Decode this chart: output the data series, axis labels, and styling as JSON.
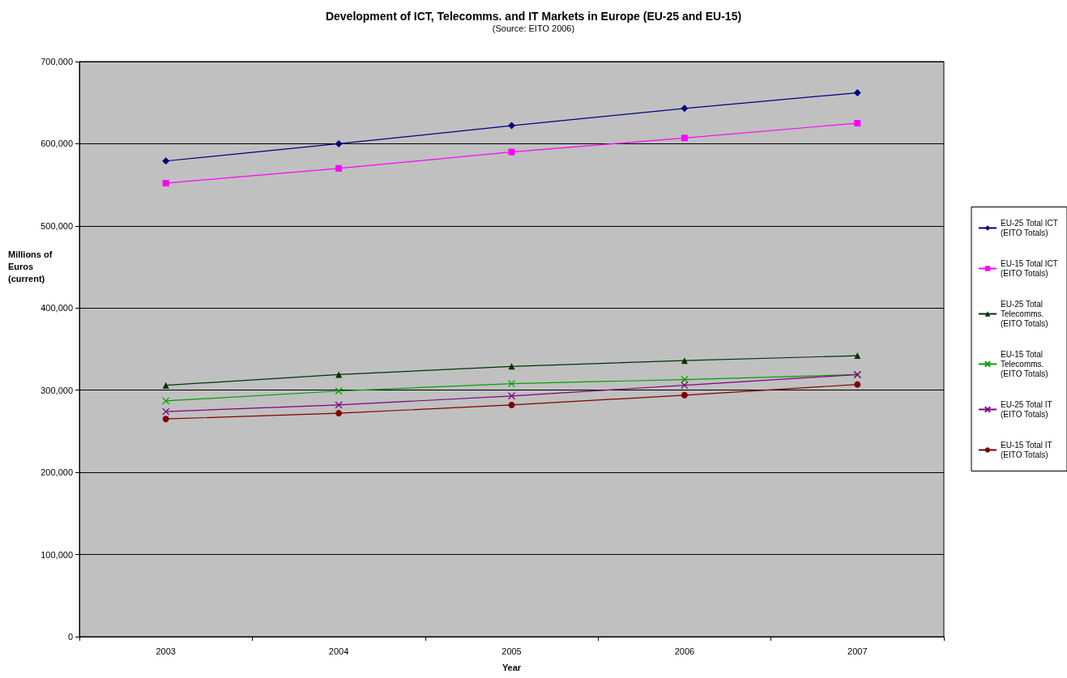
{
  "chart_data": {
    "type": "line",
    "title": "Development of ICT, Telecomms. and IT Markets in Europe (EU-25 and EU-15)",
    "subtitle": "(Source: EITO 2006)",
    "xlabel": "Year",
    "ylabel": "Millions of Euros (current)",
    "categories": [
      "2003",
      "2004",
      "2005",
      "2006",
      "2007"
    ],
    "ylim": [
      0,
      700000
    ],
    "yticks": [
      0,
      {
        "value": 100000,
        "label": "100,000"
      },
      {
        "value": 200000,
        "label": "200,000"
      },
      {
        "value": 300000,
        "label": "300,000"
      },
      {
        "value": 400000,
        "label": "400,000"
      },
      {
        "value": 500000,
        "label": "500,000"
      },
      {
        "value": 600000,
        "label": "600,000"
      },
      {
        "value": 700000,
        "label": "700,000"
      }
    ],
    "grid": "y",
    "legend": "right",
    "series": [
      {
        "name": "EU-25 Total ICT (EITO Totals)",
        "color": "#000080",
        "marker": "diamond",
        "values": [
          579000,
          600000,
          622000,
          643000,
          662000
        ]
      },
      {
        "name": "EU-15 Total ICT (EITO Totals)",
        "color": "#ff00ff",
        "marker": "square",
        "values": [
          552000,
          570000,
          590000,
          607000,
          625000
        ]
      },
      {
        "name": "EU-25 Total Telecomms. (EITO Totals)",
        "color": "#003300",
        "marker": "triangle",
        "values": [
          306000,
          319000,
          329000,
          336000,
          342000
        ]
      },
      {
        "name": "EU-15 Total Telecomms. (EITO Totals)",
        "color": "#00a000",
        "marker": "cross",
        "values": [
          287000,
          299000,
          308000,
          313000,
          319000
        ]
      },
      {
        "name": "EU-25 Total IT (EITO Totals)",
        "color": "#800080",
        "marker": "cross",
        "values": [
          274000,
          282000,
          293000,
          306000,
          319000
        ]
      },
      {
        "name": "EU-15 Total IT (EITO Totals)",
        "color": "#800000",
        "marker": "circle",
        "values": [
          265000,
          272000,
          282000,
          294000,
          307000
        ]
      }
    ]
  }
}
